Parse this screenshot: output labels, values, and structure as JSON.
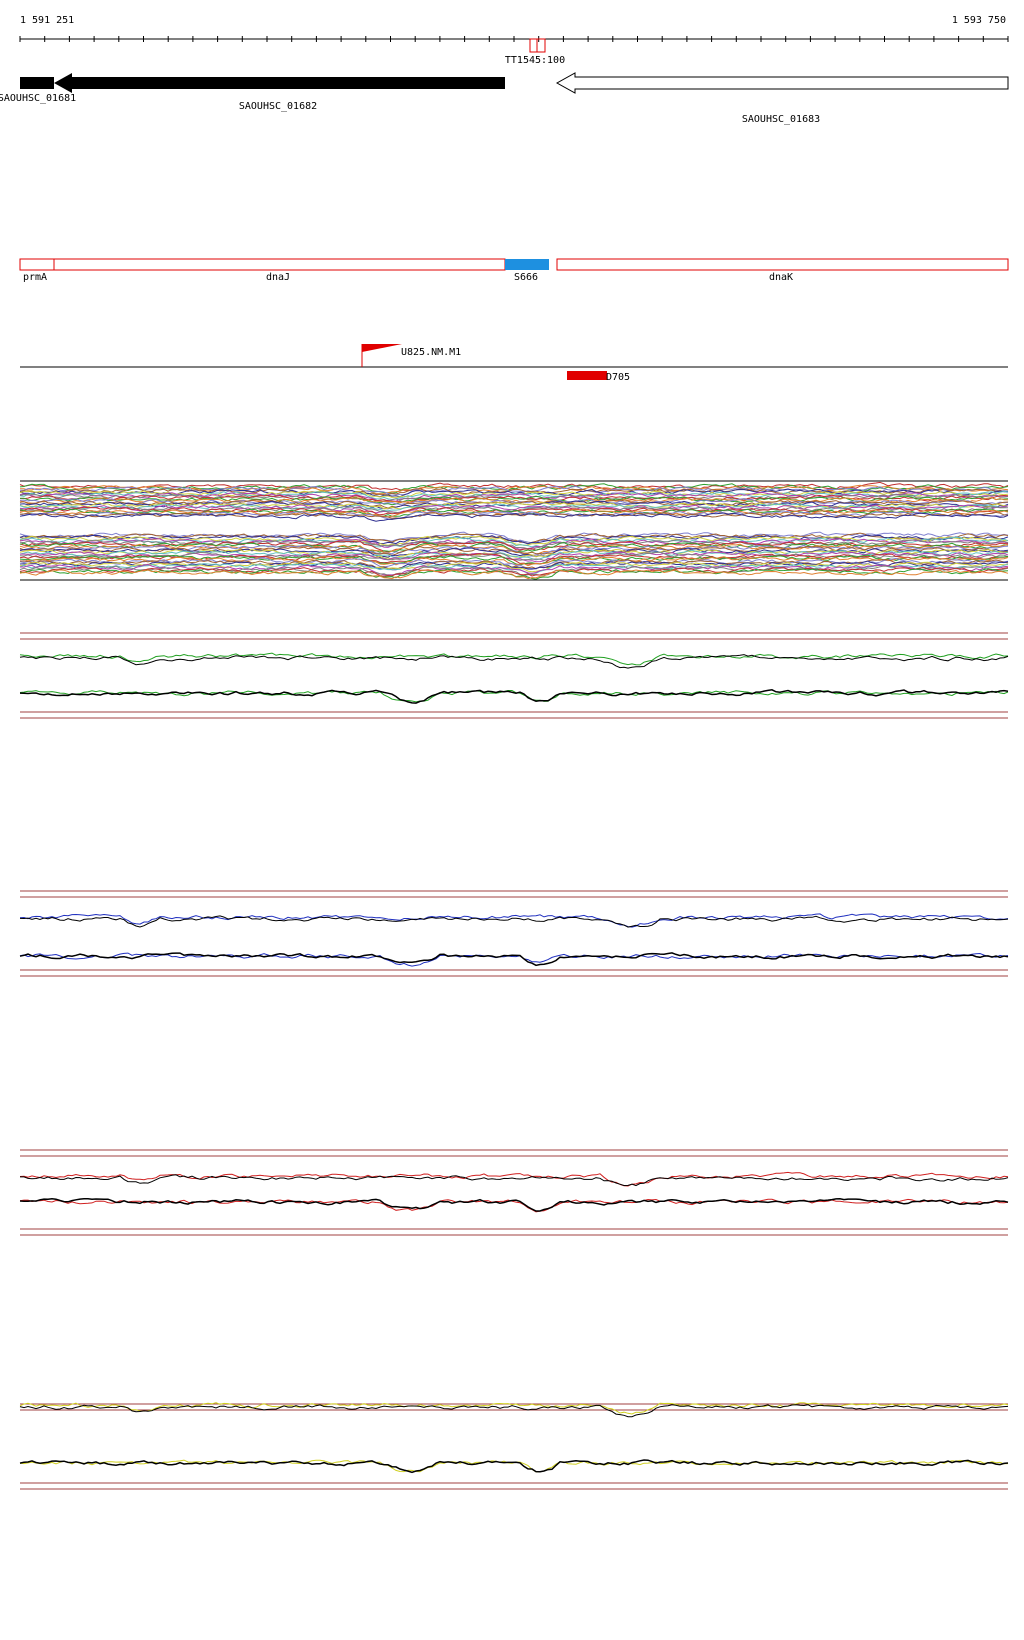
{
  "ruler": {
    "start": "1 591 251",
    "end": "1 593 750",
    "marker": "TT1545:100"
  },
  "genes": [
    "SAOUHSC_01681",
    "SAOUHSC_01682",
    "SAOUHSC_01683"
  ],
  "features": [
    "prmA",
    "dnaJ",
    "S666",
    "dnaK"
  ],
  "reads": [
    "U825.NM.M1",
    "D705"
  ]
}
